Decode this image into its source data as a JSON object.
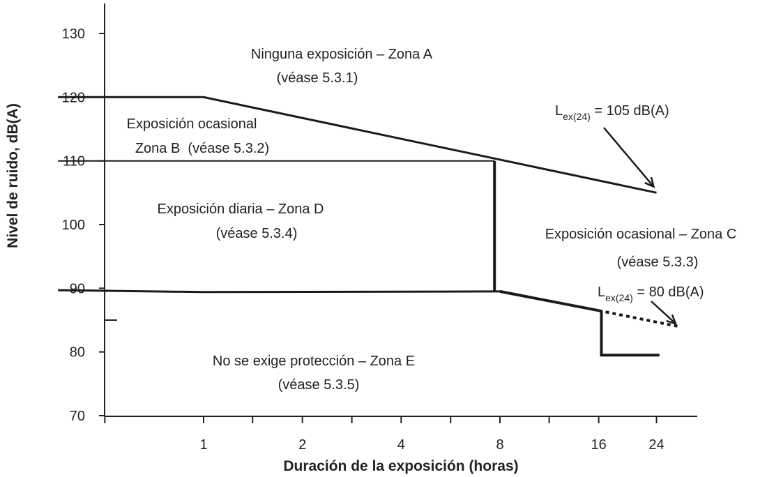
{
  "chart_data": {
    "type": "line",
    "xlabel": "Duración de la exposición (horas)",
    "ylabel": "Nivel de ruido, dB(A)",
    "x_scale": "log2",
    "xlim": [
      0.35,
      24
    ],
    "ylim": [
      70,
      131
    ],
    "x_ticks": [
      1,
      2,
      4,
      8,
      16,
      24
    ],
    "y_ticks": [
      70,
      80,
      90,
      100,
      110,
      120,
      130
    ],
    "grid": false,
    "series": [
      {
        "key": "upper",
        "style": "solid-medium",
        "points": [
          [
            0.36,
            120
          ],
          [
            1,
            120
          ],
          [
            24,
            105
          ]
        ]
      },
      {
        "key": "zone-b-lower",
        "style": "solid-thin",
        "points": [
          [
            0.36,
            110
          ],
          [
            7.7,
            110
          ]
        ]
      },
      {
        "key": "eight-hour-vertical",
        "style": "solid-thick",
        "points": [
          [
            7.7,
            89.5
          ],
          [
            7.7,
            110
          ]
        ]
      },
      {
        "key": "lower-left",
        "style": "solid-medium",
        "points": [
          [
            0.36,
            89.7
          ],
          [
            1,
            89.4
          ],
          [
            8,
            89.5
          ]
        ]
      },
      {
        "key": "lower-right",
        "style": "solid-thick",
        "points": [
          [
            8,
            89.5
          ],
          [
            16,
            86.5
          ]
        ]
      },
      {
        "key": "lower-dotted",
        "style": "dotted",
        "points": [
          [
            16,
            86.5
          ],
          [
            28,
            84
          ]
        ]
      },
      {
        "key": "zone-c-step",
        "style": "solid-thick",
        "points": [
          [
            16.3,
            86.5
          ],
          [
            16.3,
            79.5
          ],
          [
            24.5,
            79.5
          ]
        ]
      }
    ],
    "annotations": [
      {
        "key": "zone_a",
        "lines": [
          "Ninguna exposición – Zona A",
          "(véase 5.3.1)"
        ]
      },
      {
        "key": "zone_b",
        "lines": [
          "Exposición ocasional",
          "Zona B  (véase 5.3.2)"
        ]
      },
      {
        "key": "zone_d",
        "lines": [
          "Exposición diaria – Zona D",
          "(véase 5.3.4)"
        ]
      },
      {
        "key": "zone_c",
        "lines": [
          "Exposición ocasional – Zona C",
          "(véase 5.3.3)"
        ]
      },
      {
        "key": "zone_e",
        "lines": [
          "No se exige protección – Zona E",
          "(véase 5.3.5)"
        ]
      }
    ],
    "lex_labels": [
      {
        "key": "lex_105",
        "base": "L",
        "sub": "ex(24)",
        "value": " = 105 dB(A)",
        "arrow_to": [
          24,
          105.5
        ]
      },
      {
        "key": "lex_80",
        "base": "L",
        "sub": "ex(24)",
        "value": " = 80 dB(A)",
        "arrow_to": [
          28,
          84
        ]
      }
    ]
  }
}
